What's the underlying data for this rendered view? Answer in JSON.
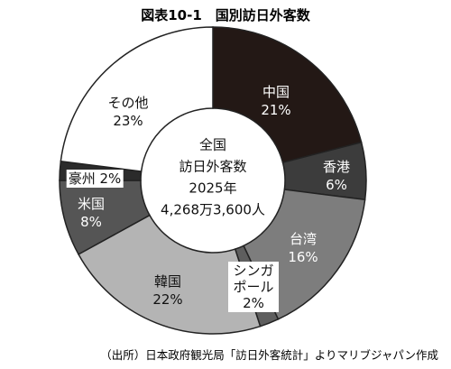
{
  "chart_data": {
    "type": "donut",
    "title": "図表10-1　国別訪日外客数",
    "center_text": [
      "全国",
      "訪日外客数",
      "2025年",
      "4,268万3,600人"
    ],
    "categories": [
      "中国",
      "香港",
      "台湾",
      "シンガポール",
      "韓国",
      "米国",
      "豪州",
      "その他"
    ],
    "values": [
      21,
      6,
      16,
      2,
      22,
      8,
      2,
      23
    ],
    "value_labels": [
      "21%",
      "6%",
      "16%",
      "2%",
      "22%",
      "8%",
      "2%",
      "23%"
    ],
    "colors": [
      "#231815",
      "#3c3c3c",
      "#7d7d7d",
      "#5e5e5e",
      "#b4b4b4",
      "#555555",
      "#2b2b2b",
      "#ffffff"
    ],
    "source": "（出所）日本政府観光局「訪日外客統計」よりマリブジャパン作成"
  }
}
